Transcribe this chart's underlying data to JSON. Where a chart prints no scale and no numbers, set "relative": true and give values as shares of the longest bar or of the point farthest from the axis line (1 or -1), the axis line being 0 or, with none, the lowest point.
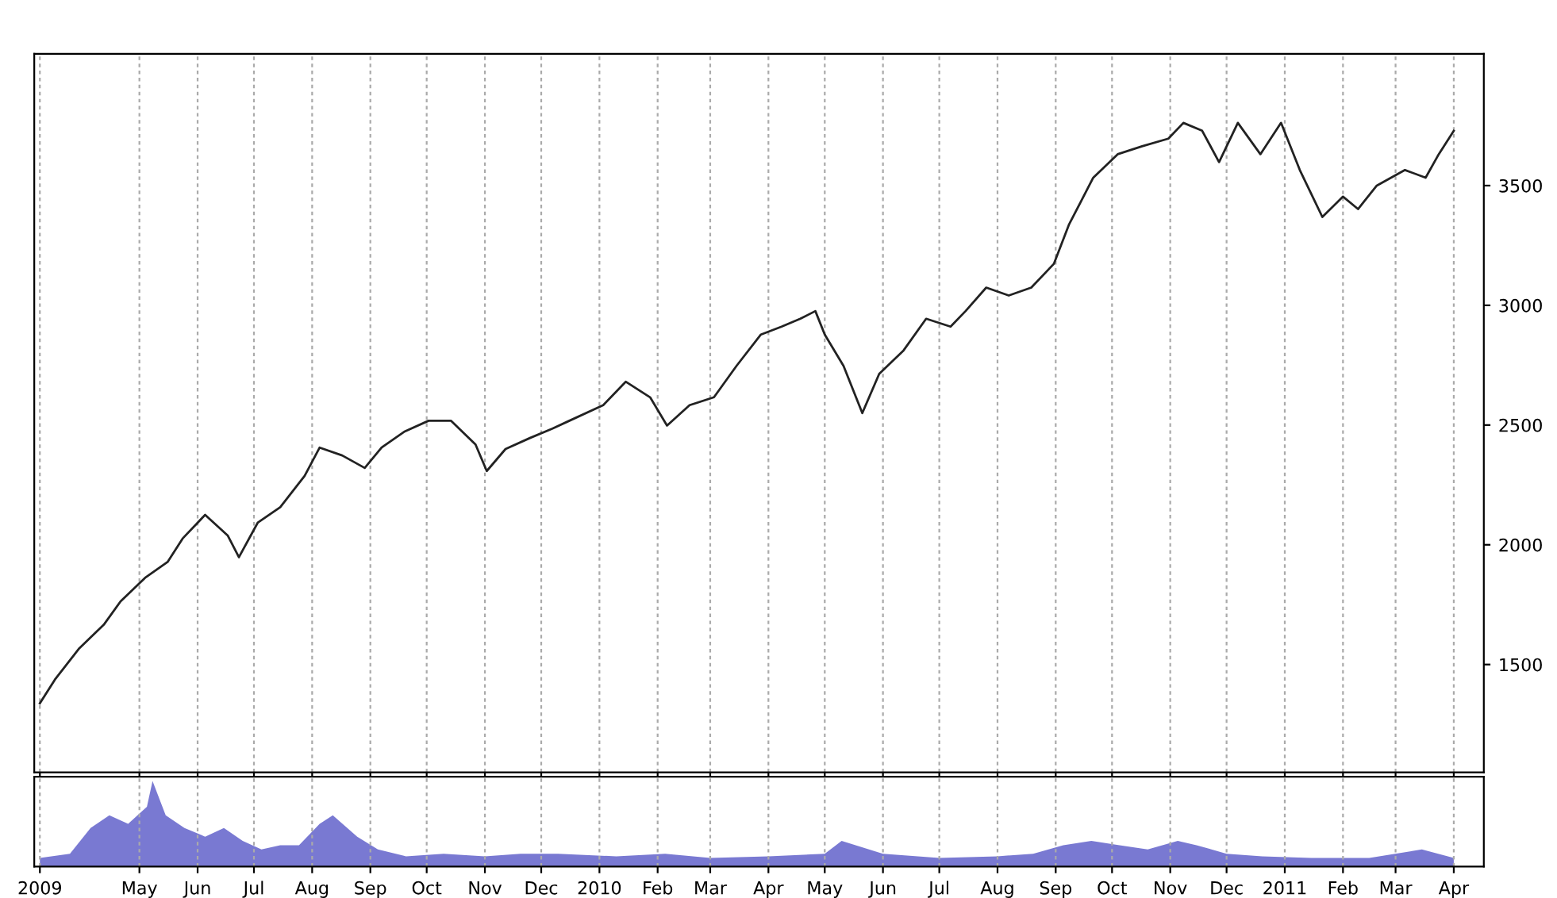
{
  "chart_data": [
    {
      "type": "line",
      "tick_labels": "y",
      "grid": "x",
      "xlim": [
        "2009-03-06",
        "2011-04-17"
      ],
      "ylim": [
        1050,
        4050
      ],
      "xticks": [
        {
          "value": "2009-03-09",
          "label": null
        },
        {
          "value": "2009-05-01",
          "label": null
        },
        {
          "value": "2009-06-01",
          "label": null
        },
        {
          "value": "2009-07-01",
          "label": null
        },
        {
          "value": "2009-08-01",
          "label": null
        },
        {
          "value": "2009-09-01",
          "label": null
        },
        {
          "value": "2009-10-01",
          "label": null
        },
        {
          "value": "2009-11-01",
          "label": null
        },
        {
          "value": "2009-12-01",
          "label": null
        },
        {
          "value": "2010-01-01",
          "label": null
        },
        {
          "value": "2010-02-01",
          "label": null
        },
        {
          "value": "2010-03-01",
          "label": null
        },
        {
          "value": "2010-04-01",
          "label": null
        },
        {
          "value": "2010-05-01",
          "label": null
        },
        {
          "value": "2010-06-01",
          "label": null
        },
        {
          "value": "2010-07-01",
          "label": null
        },
        {
          "value": "2010-08-01",
          "label": null
        },
        {
          "value": "2010-09-01",
          "label": null
        },
        {
          "value": "2010-10-01",
          "label": null
        },
        {
          "value": "2010-11-01",
          "label": null
        },
        {
          "value": "2010-12-01",
          "label": null
        },
        {
          "value": "2011-01-01",
          "label": null
        },
        {
          "value": "2011-02-01",
          "label": null
        },
        {
          "value": "2011-03-01",
          "label": null
        },
        {
          "value": "2011-04-01",
          "label": null
        }
      ],
      "yticks": [
        1500,
        2000,
        2500,
        3000,
        3500
      ],
      "series": [
        {
          "color": "#222222",
          "x": [
            "2009-03-09",
            "2009-03-17",
            "2009-03-30",
            "2009-04-12",
            "2009-04-21",
            "2009-05-04",
            "2009-05-16",
            "2009-05-24",
            "2009-06-05",
            "2009-06-17",
            "2009-06-23",
            "2009-07-03",
            "2009-07-15",
            "2009-07-28",
            "2009-08-05",
            "2009-08-17",
            "2009-08-29",
            "2009-09-07",
            "2009-09-19",
            "2009-10-02",
            "2009-10-14",
            "2009-10-27",
            "2009-11-02",
            "2009-11-12",
            "2009-11-25",
            "2009-12-07",
            "2009-12-16",
            "2010-01-03",
            "2010-01-15",
            "2010-01-28",
            "2010-02-06",
            "2010-02-18",
            "2010-03-03",
            "2010-03-15",
            "2010-03-28",
            "2010-04-08",
            "2010-04-18",
            "2010-04-26",
            "2010-05-01",
            "2010-05-11",
            "2010-05-21",
            "2010-05-30",
            "2010-06-12",
            "2010-06-24",
            "2010-07-07",
            "2010-07-15",
            "2010-07-26",
            "2010-08-07",
            "2010-08-19",
            "2010-08-31",
            "2010-09-08",
            "2010-09-21",
            "2010-10-04",
            "2010-10-17",
            "2010-10-31",
            "2010-11-08",
            "2010-11-18",
            "2010-11-27",
            "2010-12-07",
            "2010-12-19",
            "2010-12-30",
            "2011-01-09",
            "2011-01-21",
            "2011-02-01",
            "2011-02-09",
            "2011-02-19",
            "2011-03-06",
            "2011-03-17",
            "2011-03-24",
            "2011-04-01"
          ],
          "values": [
            1338,
            1437,
            1568,
            1666,
            1764,
            1862,
            1928,
            2026,
            2125,
            2039,
            1948,
            2092,
            2157,
            2288,
            2406,
            2373,
            2321,
            2406,
            2472,
            2518,
            2518,
            2419,
            2308,
            2400,
            2446,
            2485,
            2518,
            2583,
            2681,
            2616,
            2498,
            2583,
            2616,
            2747,
            2878,
            2911,
            2944,
            2976,
            2878,
            2747,
            2550,
            2714,
            2812,
            2944,
            2911,
            2976,
            3074,
            3041,
            3074,
            3173,
            3336,
            3533,
            3631,
            3664,
            3696,
            3762,
            3729,
            3598,
            3762,
            3631,
            3762,
            3565,
            3369,
            3454,
            3402,
            3500,
            3565,
            3533,
            3631,
            3729
          ]
        }
      ]
    },
    {
      "type": "area",
      "relative": true,
      "tick_labels": "x",
      "grid": "x",
      "xlim": [
        "2009-03-06",
        "2011-04-17"
      ],
      "xticks": [
        {
          "value": "2009-03-09",
          "label": "2009"
        },
        {
          "value": "2009-05-01",
          "label": "May"
        },
        {
          "value": "2009-06-01",
          "label": "Jun"
        },
        {
          "value": "2009-07-01",
          "label": "Jul"
        },
        {
          "value": "2009-08-01",
          "label": "Aug"
        },
        {
          "value": "2009-09-01",
          "label": "Sep"
        },
        {
          "value": "2009-10-01",
          "label": "Oct"
        },
        {
          "value": "2009-11-01",
          "label": "Nov"
        },
        {
          "value": "2009-12-01",
          "label": "Dec"
        },
        {
          "value": "2010-01-01",
          "label": "2010"
        },
        {
          "value": "2010-02-01",
          "label": "Feb"
        },
        {
          "value": "2010-03-01",
          "label": "Mar"
        },
        {
          "value": "2010-04-01",
          "label": "Apr"
        },
        {
          "value": "2010-05-01",
          "label": "May"
        },
        {
          "value": "2010-06-01",
          "label": "Jun"
        },
        {
          "value": "2010-07-01",
          "label": "Jul"
        },
        {
          "value": "2010-08-01",
          "label": "Aug"
        },
        {
          "value": "2010-09-01",
          "label": "Sep"
        },
        {
          "value": "2010-10-01",
          "label": "Oct"
        },
        {
          "value": "2010-11-01",
          "label": "Nov"
        },
        {
          "value": "2010-12-01",
          "label": "Dec"
        },
        {
          "value": "2011-01-01",
          "label": "2011"
        },
        {
          "value": "2011-02-01",
          "label": "Feb"
        },
        {
          "value": "2011-03-01",
          "label": "Mar"
        },
        {
          "value": "2011-04-01",
          "label": "Apr"
        }
      ],
      "series": [
        {
          "color": "#6a6acd",
          "x": [
            "2009-03-09",
            "2009-03-25",
            "2009-04-05",
            "2009-04-15",
            "2009-04-25",
            "2009-05-05",
            "2009-05-08",
            "2009-05-15",
            "2009-05-25",
            "2009-06-05",
            "2009-06-15",
            "2009-06-25",
            "2009-07-05",
            "2009-07-15",
            "2009-07-25",
            "2009-08-05",
            "2009-08-12",
            "2009-08-25",
            "2009-09-05",
            "2009-09-20",
            "2009-10-10",
            "2009-11-01",
            "2009-11-20",
            "2009-12-10",
            "2010-01-10",
            "2010-02-05",
            "2010-03-01",
            "2010-04-01",
            "2010-05-01",
            "2010-05-10",
            "2010-06-01",
            "2010-07-01",
            "2010-08-01",
            "2010-08-20",
            "2010-09-05",
            "2010-09-20",
            "2010-10-05",
            "2010-10-20",
            "2010-11-05",
            "2010-11-15",
            "2010-12-01",
            "2010-12-20",
            "2011-01-15",
            "2011-02-15",
            "2011-03-15",
            "2011-04-01"
          ],
          "values": [
            0.1,
            0.15,
            0.45,
            0.6,
            0.5,
            0.7,
            1.0,
            0.6,
            0.45,
            0.35,
            0.45,
            0.3,
            0.2,
            0.25,
            0.25,
            0.5,
            0.6,
            0.35,
            0.2,
            0.12,
            0.15,
            0.12,
            0.15,
            0.15,
            0.12,
            0.15,
            0.1,
            0.12,
            0.15,
            0.3,
            0.15,
            0.1,
            0.12,
            0.15,
            0.25,
            0.3,
            0.25,
            0.2,
            0.3,
            0.25,
            0.15,
            0.12,
            0.1,
            0.1,
            0.2,
            0.1
          ]
        }
      ]
    }
  ]
}
